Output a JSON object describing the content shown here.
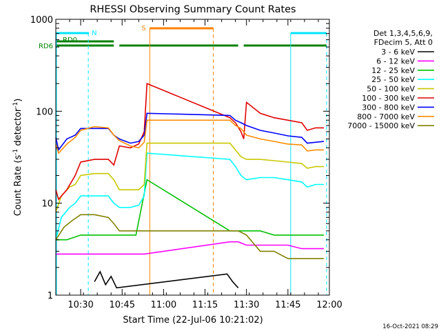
{
  "chart_data": {
    "type": "line",
    "title": "RHESSI Observing Summary Count Rates",
    "xlabel": "Start Time (22-Jul-06 10:21:02)",
    "ylabel_main": "Count Rate (s",
    "ylabel_sup1": "-1",
    "ylabel_mid": " detector",
    "ylabel_sup2": "-1",
    "ylabel_end": ")",
    "yscale": "log",
    "ylim": [
      1,
      1000
    ],
    "xlim": [
      "10:21",
      "12:00"
    ],
    "x_ticks": [
      "10:30",
      "10:45",
      "11:00",
      "11:15",
      "11:30",
      "11:45",
      "12:00"
    ],
    "y_ticks": [
      "1",
      "10",
      "100",
      "1000"
    ],
    "timestamp": "16-Oct-2021 08:29",
    "legend_header": [
      "Det 1,3,4,5,6,9,",
      "FDecim 5, Att 0"
    ],
    "flags": {
      "N": {
        "label": "N",
        "color": "#00e5ff",
        "segments": [
          [
            "10:21",
            "10:33"
          ],
          [
            "11:46",
            "11:59"
          ]
        ]
      },
      "S": {
        "label": "S",
        "color": "#ff8000",
        "segments": [
          [
            "10:55",
            "11:18"
          ]
        ]
      },
      "RD0": {
        "label": "RD0",
        "color": "#008000",
        "segments": [
          [
            "10:21",
            "10:42"
          ]
        ]
      },
      "RD6": {
        "label": "RD6",
        "color": "#008000",
        "segments": [
          [
            "10:21",
            "10:42"
          ],
          [
            "10:44",
            "10:55"
          ],
          [
            "10:55",
            "11:18"
          ],
          [
            "11:18",
            "11:27"
          ],
          [
            "11:29",
            "11:59"
          ]
        ]
      }
    },
    "series": [
      {
        "name": "3 - 6 keV",
        "color": "#000000",
        "x": [
          "10:35",
          "10:37",
          "10:39",
          "10:41",
          "10:43",
          "11:23",
          "11:25",
          "11:27"
        ],
        "y": [
          1.4,
          1.8,
          1.3,
          1.6,
          1.2,
          1.7,
          1.4,
          1.2
        ]
      },
      {
        "name": "6 - 12 keV",
        "color": "#ff00ff",
        "x": [
          "10:21",
          "10:25",
          "10:30",
          "10:35",
          "10:40",
          "10:45",
          "10:50",
          "10:53",
          "11:24",
          "11:27",
          "11:30",
          "11:35",
          "11:40",
          "11:45",
          "11:50",
          "11:58"
        ],
        "y": [
          2.8,
          2.8,
          2.8,
          2.8,
          2.8,
          2.8,
          2.8,
          2.8,
          3.8,
          3.8,
          3.5,
          3.5,
          3.5,
          3.5,
          3.2,
          3.2
        ]
      },
      {
        "name": "12 - 25 keV",
        "color": "#00c000",
        "x": [
          "10:21",
          "10:25",
          "10:30",
          "10:35",
          "10:40",
          "10:45",
          "10:50",
          "10:54",
          "11:24",
          "11:27",
          "11:30",
          "11:35",
          "11:40",
          "11:45",
          "11:50",
          "11:58"
        ],
        "y": [
          4,
          4,
          4.5,
          4.5,
          4.5,
          4.5,
          4.5,
          18,
          5,
          5,
          5,
          5,
          4.5,
          4.5,
          4.5,
          4.5
        ]
      },
      {
        "name": "25 - 50 keV",
        "color": "#00ffff",
        "x": [
          "10:21",
          "10:23",
          "10:26",
          "10:28",
          "10:30",
          "10:35",
          "10:40",
          "10:42",
          "10:44",
          "10:48",
          "10:51",
          "10:53",
          "10:54",
          "11:24",
          "11:26",
          "11:28",
          "11:30",
          "11:35",
          "11:40",
          "11:45",
          "11:50",
          "11:52",
          "11:55",
          "11:58"
        ],
        "y": [
          4,
          7,
          9,
          10,
          12,
          12,
          12,
          10,
          9,
          9,
          9.5,
          12,
          35,
          30,
          25,
          20,
          18,
          19,
          19,
          18,
          17,
          15,
          16,
          16
        ]
      },
      {
        "name": "50 - 100 keV",
        "color": "#c8c800",
        "x": [
          "10:21",
          "10:23",
          "10:26",
          "10:28",
          "10:30",
          "10:35",
          "10:40",
          "10:42",
          "10:44",
          "10:48",
          "10:51",
          "10:53",
          "10:54",
          "11:24",
          "11:26",
          "11:28",
          "11:30",
          "11:35",
          "11:40",
          "11:45",
          "11:50",
          "11:52",
          "11:55",
          "11:58"
        ],
        "y": [
          8,
          12,
          15,
          16,
          20,
          21,
          21,
          18,
          14,
          14,
          14,
          16,
          45,
          45,
          38,
          32,
          30,
          30,
          29,
          28,
          27,
          24,
          25,
          25
        ]
      },
      {
        "name": "100 - 300 keV",
        "color": "#e00000",
        "x": [
          "10:21",
          "10:22",
          "10:25",
          "10:28",
          "10:30",
          "10:35",
          "10:40",
          "10:42",
          "10:44",
          "10:48",
          "10:51",
          "10:53",
          "10:54",
          "11:24",
          "11:26",
          "11:28",
          "11:29",
          "11:30",
          "11:35",
          "11:40",
          "11:45",
          "11:50",
          "11:52",
          "11:55",
          "11:58"
        ],
        "y": [
          14,
          11,
          14,
          20,
          28,
          30,
          30,
          26,
          42,
          40,
          44,
          60,
          200,
          85,
          75,
          60,
          50,
          125,
          95,
          85,
          80,
          75,
          62,
          66,
          66
        ]
      },
      {
        "name": "300 - 800 keV",
        "color": "#0000ff",
        "x": [
          "10:21",
          "10:22",
          "10:25",
          "10:28",
          "10:30",
          "10:35",
          "10:40",
          "10:42",
          "10:44",
          "10:48",
          "10:51",
          "10:53",
          "10:54",
          "11:24",
          "11:26",
          "11:28",
          "11:30",
          "11:35",
          "11:40",
          "11:45",
          "11:50",
          "11:52",
          "11:55",
          "11:58"
        ],
        "y": [
          52,
          38,
          50,
          55,
          65,
          65,
          65,
          55,
          50,
          45,
          47,
          55,
          95,
          90,
          80,
          75,
          70,
          62,
          58,
          54,
          52,
          45,
          46,
          47
        ]
      },
      {
        "name": "800 - 7000 keV",
        "color": "#ff8c00",
        "x": [
          "10:21",
          "10:22",
          "10:25",
          "10:28",
          "10:30",
          "10:35",
          "10:40",
          "10:42",
          "10:44",
          "10:48",
          "10:51",
          "10:53",
          "10:54",
          "11:24",
          "11:26",
          "11:28",
          "11:30",
          "11:35",
          "11:40",
          "11:45",
          "11:50",
          "11:52",
          "11:55",
          "11:58"
        ],
        "y": [
          44,
          35,
          44,
          52,
          62,
          68,
          66,
          55,
          48,
          42,
          40,
          46,
          80,
          80,
          70,
          65,
          55,
          50,
          47,
          44,
          43,
          37,
          38,
          38
        ]
      },
      {
        "name": "7000 - 15000 keV",
        "color": "#808000",
        "x": [
          "10:21",
          "10:24",
          "10:27",
          "10:30",
          "10:35",
          "10:40",
          "10:42",
          "10:44",
          "10:48",
          "10:52",
          "10:54",
          "11:24",
          "11:27",
          "11:30",
          "11:35",
          "11:40",
          "11:45",
          "11:50",
          "11:55",
          "11:58"
        ],
        "y": [
          4,
          5.5,
          6.5,
          7.5,
          7.5,
          7,
          6,
          5,
          5,
          5,
          5,
          5,
          5,
          4.5,
          3,
          3,
          2.5,
          2.5,
          2.5,
          2.5
        ]
      }
    ]
  }
}
